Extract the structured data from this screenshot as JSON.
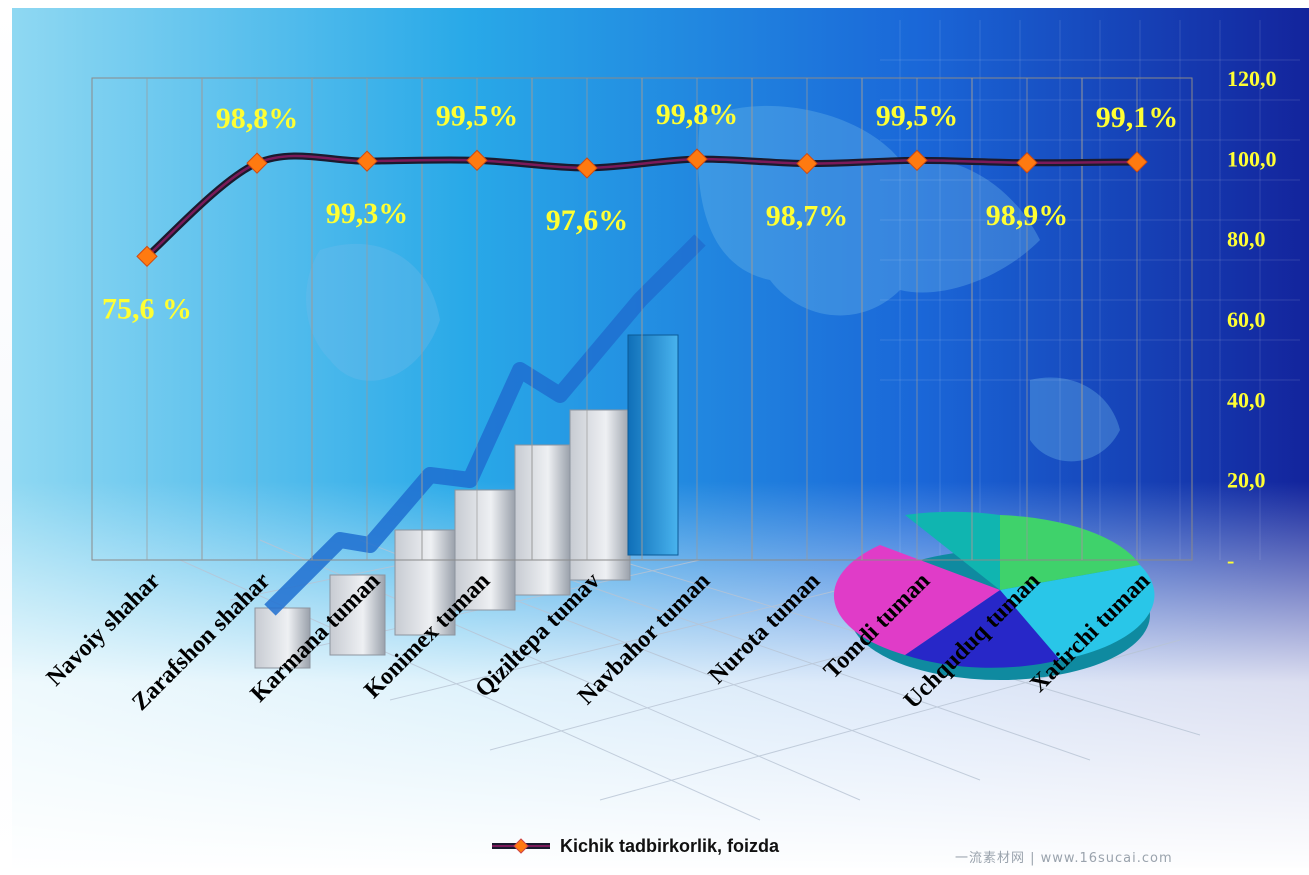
{
  "chart_data": {
    "type": "line",
    "categories": [
      "Navoiy shahar",
      "Zarafshon shahar",
      "Karmana tuman",
      "Konimex tuman",
      "Qiziltepa tumav",
      "Navbahor tuman",
      "Nurota tuman",
      "Tomdi tuman",
      "Uchquduq tuman",
      "Xatirchi tuman"
    ],
    "series": [
      {
        "name": "Kichik tadbirkorlik, foizda",
        "values": [
          75.6,
          98.8,
          99.3,
          99.5,
          97.6,
          99.8,
          98.7,
          99.5,
          98.9,
          99.1
        ],
        "data_labels": [
          "75,6 %",
          "98,8%",
          "99,3%",
          "99,5%",
          "97,6%",
          "99,8%",
          "98,7%",
          "99,5%",
          "98,9%",
          "99,1%"
        ]
      }
    ],
    "ylim": [
      0,
      120
    ],
    "y_ticks": [
      "-",
      "20,0",
      "40,0",
      "60,0",
      "80,0",
      "100,0",
      "120,0"
    ],
    "y_axis_side": "right",
    "grid": "vertical",
    "legend_position": "bottom",
    "colors": {
      "line": "#1a1a2e",
      "line_inner": "#7a1a5a",
      "marker": "#ff7a10",
      "data_label": "#ffff33",
      "tick_label": "#ffff33",
      "category_label": "#000000"
    }
  },
  "watermark": "一流素材网 | www.16sucai.com"
}
